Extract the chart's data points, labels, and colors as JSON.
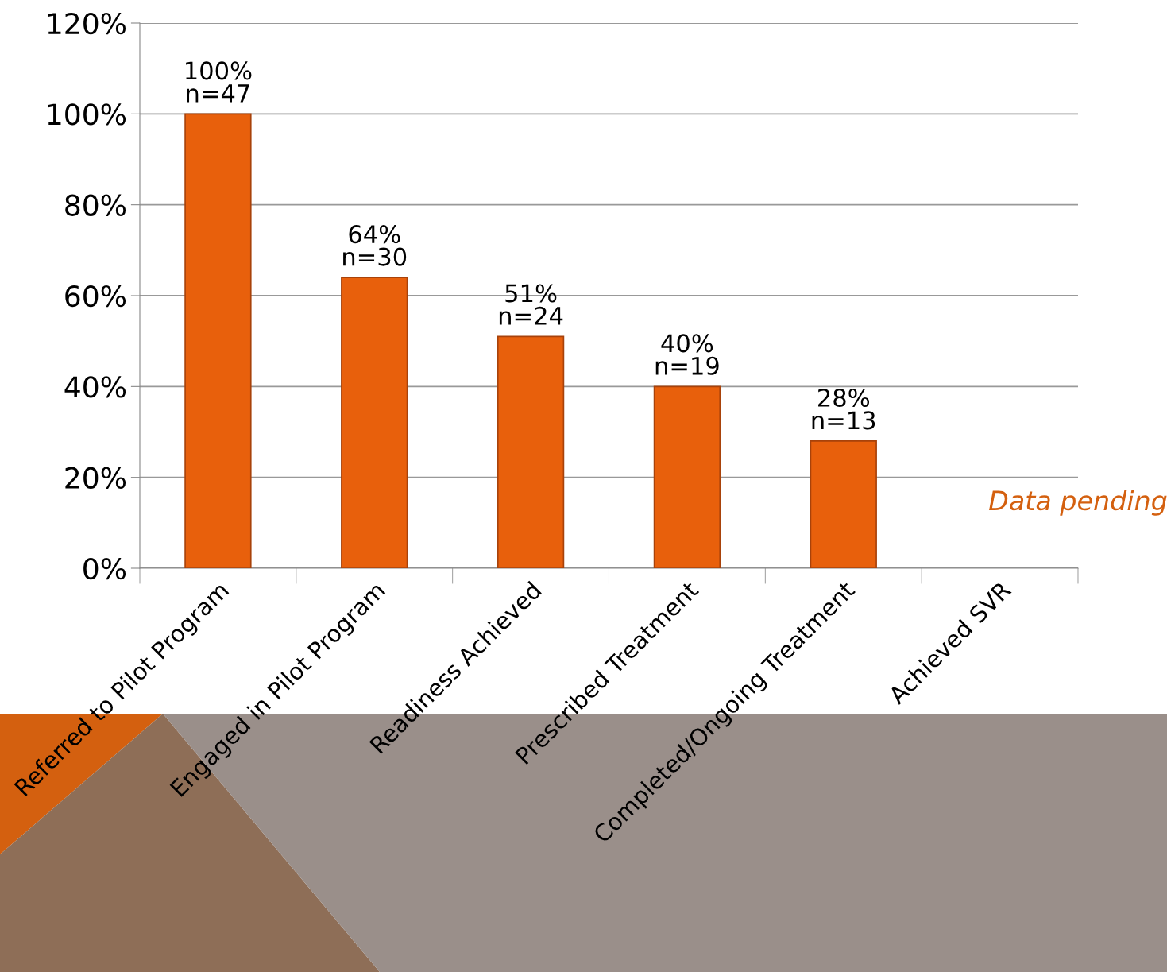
{
  "chart_data": {
    "type": "bar",
    "categories": [
      "Referred to Pilot Program",
      "Engaged in Pilot Program",
      "Readiness Achieved",
      "Prescribed Treatment",
      "Completed/Ongoing Treatment",
      "Achieved SVR"
    ],
    "values": [
      100,
      64,
      51,
      40,
      28,
      null
    ],
    "value_labels": [
      "100%\nn=47",
      "64%\nn=30",
      "51%\nn=24",
      "40%\nn=19",
      "28%\nn=13",
      null
    ],
    "color": "#e8600c",
    "ylim": [
      0,
      120
    ],
    "yticks": [
      {
        "value": 0,
        "label": "0%"
      },
      {
        "value": 20,
        "label": "20%"
      },
      {
        "value": 40,
        "label": "40%"
      },
      {
        "value": 60,
        "label": "60%"
      },
      {
        "value": 80,
        "label": "80%"
      },
      {
        "value": 100,
        "label": "100%"
      },
      {
        "value": 120,
        "label": "120%"
      }
    ],
    "grid": "y",
    "legend": false,
    "annotations": [
      "Data pending"
    ]
  }
}
